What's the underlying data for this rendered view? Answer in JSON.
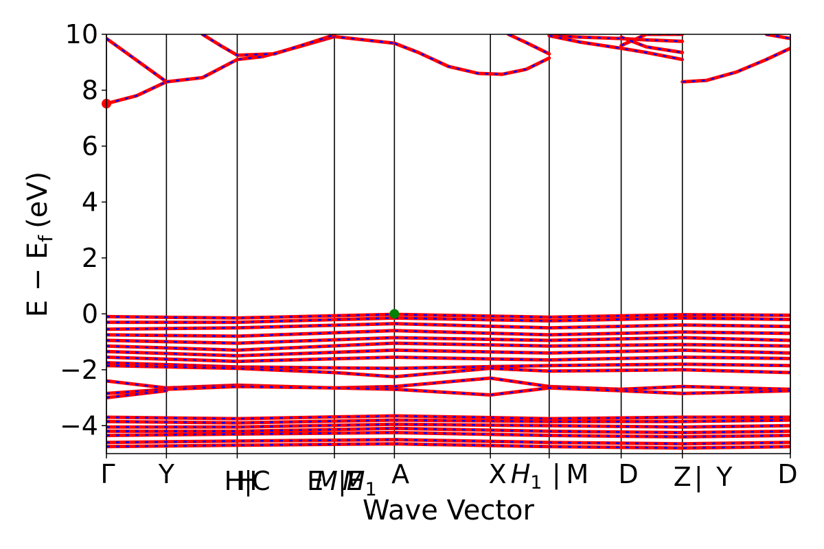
{
  "chart_data": {
    "type": "line",
    "xlabel": "Wave Vector",
    "ylabel": "E − E",
    "ylabel_sub": "f",
    "ylabel_unit": "(eV)",
    "ylim": [
      -5,
      10
    ],
    "yticks": [
      -4,
      -2,
      0,
      2,
      4,
      6,
      8,
      10
    ],
    "ytick_labels": [
      "−4",
      "−2",
      "0",
      "2",
      "4",
      "6",
      "8",
      "10"
    ],
    "xlim": [
      0,
      11.4
    ],
    "kpoints": [
      {
        "x": 0.0,
        "label": "Γ",
        "italic": false,
        "dy": 0
      },
      {
        "x": 1.0,
        "label": "Y",
        "italic": false,
        "dy": 0
      },
      {
        "x": 2.2,
        "label": "H|",
        "italic": false,
        "dy": 10
      },
      {
        "x": 2.35,
        "label": "H",
        "italic": false,
        "dy": 10
      },
      {
        "x": 2.58,
        "label": "C",
        "italic": false,
        "dy": 10
      },
      {
        "x": 3.48,
        "label": "E",
        "italic": false,
        "dy": 10
      },
      {
        "x": 3.88,
        "label": "M|E",
        "italic": true,
        "dy": 10
      },
      {
        "x": 4.22,
        "label": "M",
        "italic": true,
        "dy": 10,
        "sub": "1"
      },
      {
        "x": 4.9,
        "label": "A",
        "italic": false,
        "dy": 0
      },
      {
        "x": 6.52,
        "label": "X",
        "italic": false,
        "dy": 0
      },
      {
        "x": 7.0,
        "label": "H",
        "italic": true,
        "dy": 0,
        "sub": "1"
      },
      {
        "x": 7.5,
        "label": "|",
        "italic": false,
        "dy": 0
      },
      {
        "x": 7.85,
        "label": "M",
        "italic": false,
        "dy": 0
      },
      {
        "x": 8.7,
        "label": "D",
        "italic": false,
        "dy": 0
      },
      {
        "x": 9.6,
        "label": "Z",
        "italic": false,
        "dy": 4
      },
      {
        "x": 9.87,
        "label": "|",
        "italic": false,
        "dy": 4
      },
      {
        "x": 10.3,
        "label": "Y",
        "italic": false,
        "dy": 4
      },
      {
        "x": 11.4,
        "label": "D",
        "italic": false,
        "dy": 0
      }
    ],
    "vlines": [
      0,
      1.0,
      2.18,
      3.8,
      4.8,
      6.4,
      7.38,
      8.58,
      9.6,
      11.4
    ],
    "series": [
      {
        "x": [
          0,
          1.0
        ],
        "y": [
          9.85,
          8.3
        ]
      },
      {
        "x": [
          0,
          0.5,
          1.0
        ],
        "y": [
          7.52,
          7.8,
          8.3
        ]
      },
      {
        "x": [
          1.0,
          1.6,
          2.18,
          2.6,
          3.2,
          3.8,
          4.3,
          4.8
        ],
        "y": [
          8.3,
          8.45,
          9.1,
          9.2,
          9.55,
          9.92,
          9.8,
          9.68
        ]
      },
      {
        "x": [
          1.6,
          1.9,
          2.18,
          2.8,
          3.4,
          3.8
        ],
        "y": [
          10.0,
          9.6,
          9.25,
          9.3,
          9.7,
          9.98
        ]
      },
      {
        "x": [
          4.8,
          5.2,
          5.7,
          6.2,
          6.6,
          7.0,
          7.38
        ],
        "y": [
          9.68,
          9.35,
          8.85,
          8.6,
          8.57,
          8.75,
          9.15
        ]
      },
      {
        "x": [
          6.7,
          7.0,
          7.38
        ],
        "y": [
          10.0,
          9.7,
          9.3
        ]
      },
      {
        "x": [
          7.38,
          7.9,
          8.58,
          9.0,
          9.6
        ],
        "y": [
          9.95,
          9.9,
          9.85,
          9.8,
          9.75
        ]
      },
      {
        "x": [
          7.38,
          7.9,
          8.58,
          9.0,
          9.6
        ],
        "y": [
          9.95,
          9.72,
          9.5,
          9.35,
          9.1
        ]
      },
      {
        "x": [
          8.58,
          9.0,
          9.6
        ],
        "y": [
          9.6,
          10.0,
          10.0
        ]
      },
      {
        "x": [
          8.58,
          9.0,
          9.6
        ],
        "y": [
          9.9,
          9.55,
          9.35
        ]
      },
      {
        "x": [
          9.6,
          10.0,
          10.5,
          11.0,
          11.4
        ],
        "y": [
          8.3,
          8.35,
          8.65,
          9.1,
          9.5
        ]
      },
      {
        "x": [
          11.0,
          11.4
        ],
        "y": [
          10.0,
          9.85
        ]
      },
      {
        "x": [
          0,
          2.18,
          4.8,
          7.38,
          9.6,
          11.4
        ],
        "y": [
          -0.1,
          -0.15,
          -0.02,
          -0.12,
          -0.03,
          -0.05
        ]
      },
      {
        "x": [
          0,
          2.18,
          4.8,
          7.38,
          9.6,
          11.4
        ],
        "y": [
          -0.3,
          -0.3,
          -0.15,
          -0.25,
          -0.15,
          -0.2
        ]
      },
      {
        "x": [
          0,
          2.18,
          4.8,
          7.38,
          9.6,
          11.4
        ],
        "y": [
          -0.55,
          -0.5,
          -0.35,
          -0.5,
          -0.4,
          -0.45
        ]
      },
      {
        "x": [
          0,
          2.18,
          4.8,
          7.38,
          9.6,
          11.4
        ],
        "y": [
          -0.75,
          -0.8,
          -0.6,
          -0.75,
          -0.65,
          -0.7
        ]
      },
      {
        "x": [
          0,
          2.18,
          4.8,
          7.38,
          9.6,
          11.4
        ],
        "y": [
          -0.95,
          -1.05,
          -0.85,
          -0.95,
          -0.85,
          -0.95
        ]
      },
      {
        "x": [
          0,
          2.18,
          4.8,
          7.38,
          9.6,
          11.4
        ],
        "y": [
          -1.15,
          -1.3,
          -1.05,
          -1.15,
          -1.1,
          -1.15
        ]
      },
      {
        "x": [
          0,
          2.18,
          4.8,
          7.38,
          9.6,
          11.4
        ],
        "y": [
          -1.35,
          -1.5,
          -1.3,
          -1.4,
          -1.3,
          -1.4
        ]
      },
      {
        "x": [
          0,
          2.18,
          4.8,
          7.38,
          9.6,
          11.4
        ],
        "y": [
          -1.55,
          -1.7,
          -1.55,
          -1.65,
          -1.55,
          -1.6
        ]
      },
      {
        "x": [
          0,
          2.18,
          4.8,
          7.38,
          9.6,
          11.4
        ],
        "y": [
          -1.75,
          -1.9,
          -1.95,
          -1.85,
          -1.8,
          -1.85
        ]
      },
      {
        "x": [
          0,
          2.18,
          3.8,
          4.8,
          6.4,
          7.38,
          9.6,
          11.4
        ],
        "y": [
          -1.85,
          -1.95,
          -2.1,
          -2.25,
          -1.95,
          -2.05,
          -2.0,
          -2.1
        ]
      },
      {
        "x": [
          0,
          1.0,
          2.18,
          3.8,
          4.8,
          6.4,
          7.38,
          8.58,
          9.6,
          11.4
        ],
        "y": [
          -2.4,
          -2.65,
          -2.55,
          -2.65,
          -2.6,
          -2.3,
          -2.6,
          -2.7,
          -2.6,
          -2.7
        ]
      },
      {
        "x": [
          0,
          1.0,
          2.18,
          3.8,
          4.8,
          6.4,
          7.38,
          8.58,
          9.6,
          11.4
        ],
        "y": [
          -2.85,
          -2.7,
          -2.6,
          -2.65,
          -2.7,
          -2.9,
          -2.65,
          -2.75,
          -2.85,
          -2.75
        ]
      },
      {
        "x": [
          0,
          1.0
        ],
        "y": [
          -3.0,
          -2.75
        ]
      },
      {
        "x": [
          0,
          2.18,
          4.8,
          7.38,
          9.6,
          11.4
        ],
        "y": [
          -3.7,
          -3.75,
          -3.65,
          -3.75,
          -3.7,
          -3.7
        ]
      },
      {
        "x": [
          0,
          2.18,
          4.8,
          7.38,
          9.6,
          11.4
        ],
        "y": [
          -3.85,
          -3.9,
          -3.8,
          -3.85,
          -3.85,
          -3.8
        ]
      },
      {
        "x": [
          0,
          2.18,
          4.8,
          7.38,
          9.6,
          11.4
        ],
        "y": [
          -4.05,
          -4.05,
          -3.95,
          -4.0,
          -4.05,
          -4.0
        ]
      },
      {
        "x": [
          0,
          2.18,
          4.8,
          7.38,
          9.6,
          11.4
        ],
        "y": [
          -4.2,
          -4.2,
          -4.1,
          -4.2,
          -4.25,
          -4.2
        ]
      },
      {
        "x": [
          0,
          2.18,
          4.8,
          7.38,
          9.6,
          11.4
        ],
        "y": [
          -4.35,
          -4.3,
          -4.25,
          -4.35,
          -4.4,
          -4.35
        ]
      },
      {
        "x": [
          0,
          2.18,
          4.8,
          7.38,
          9.6,
          11.4
        ],
        "y": [
          -4.6,
          -4.55,
          -4.5,
          -4.6,
          -4.65,
          -4.6
        ]
      },
      {
        "x": [
          0,
          2.18,
          4.8,
          7.38,
          9.6,
          11.4
        ],
        "y": [
          -4.75,
          -4.7,
          -4.65,
          -4.75,
          -4.8,
          -4.75
        ]
      }
    ],
    "markers": [
      {
        "x": 0.0,
        "y": 7.52,
        "color": "#ff0000",
        "name": "cbm-marker"
      },
      {
        "x": 4.8,
        "y": 0.0,
        "color": "#008000",
        "name": "vbm-marker"
      }
    ],
    "colors": {
      "band_solid": "#ff0000",
      "band_dash": "#0000ff",
      "axis": "#000000"
    }
  }
}
